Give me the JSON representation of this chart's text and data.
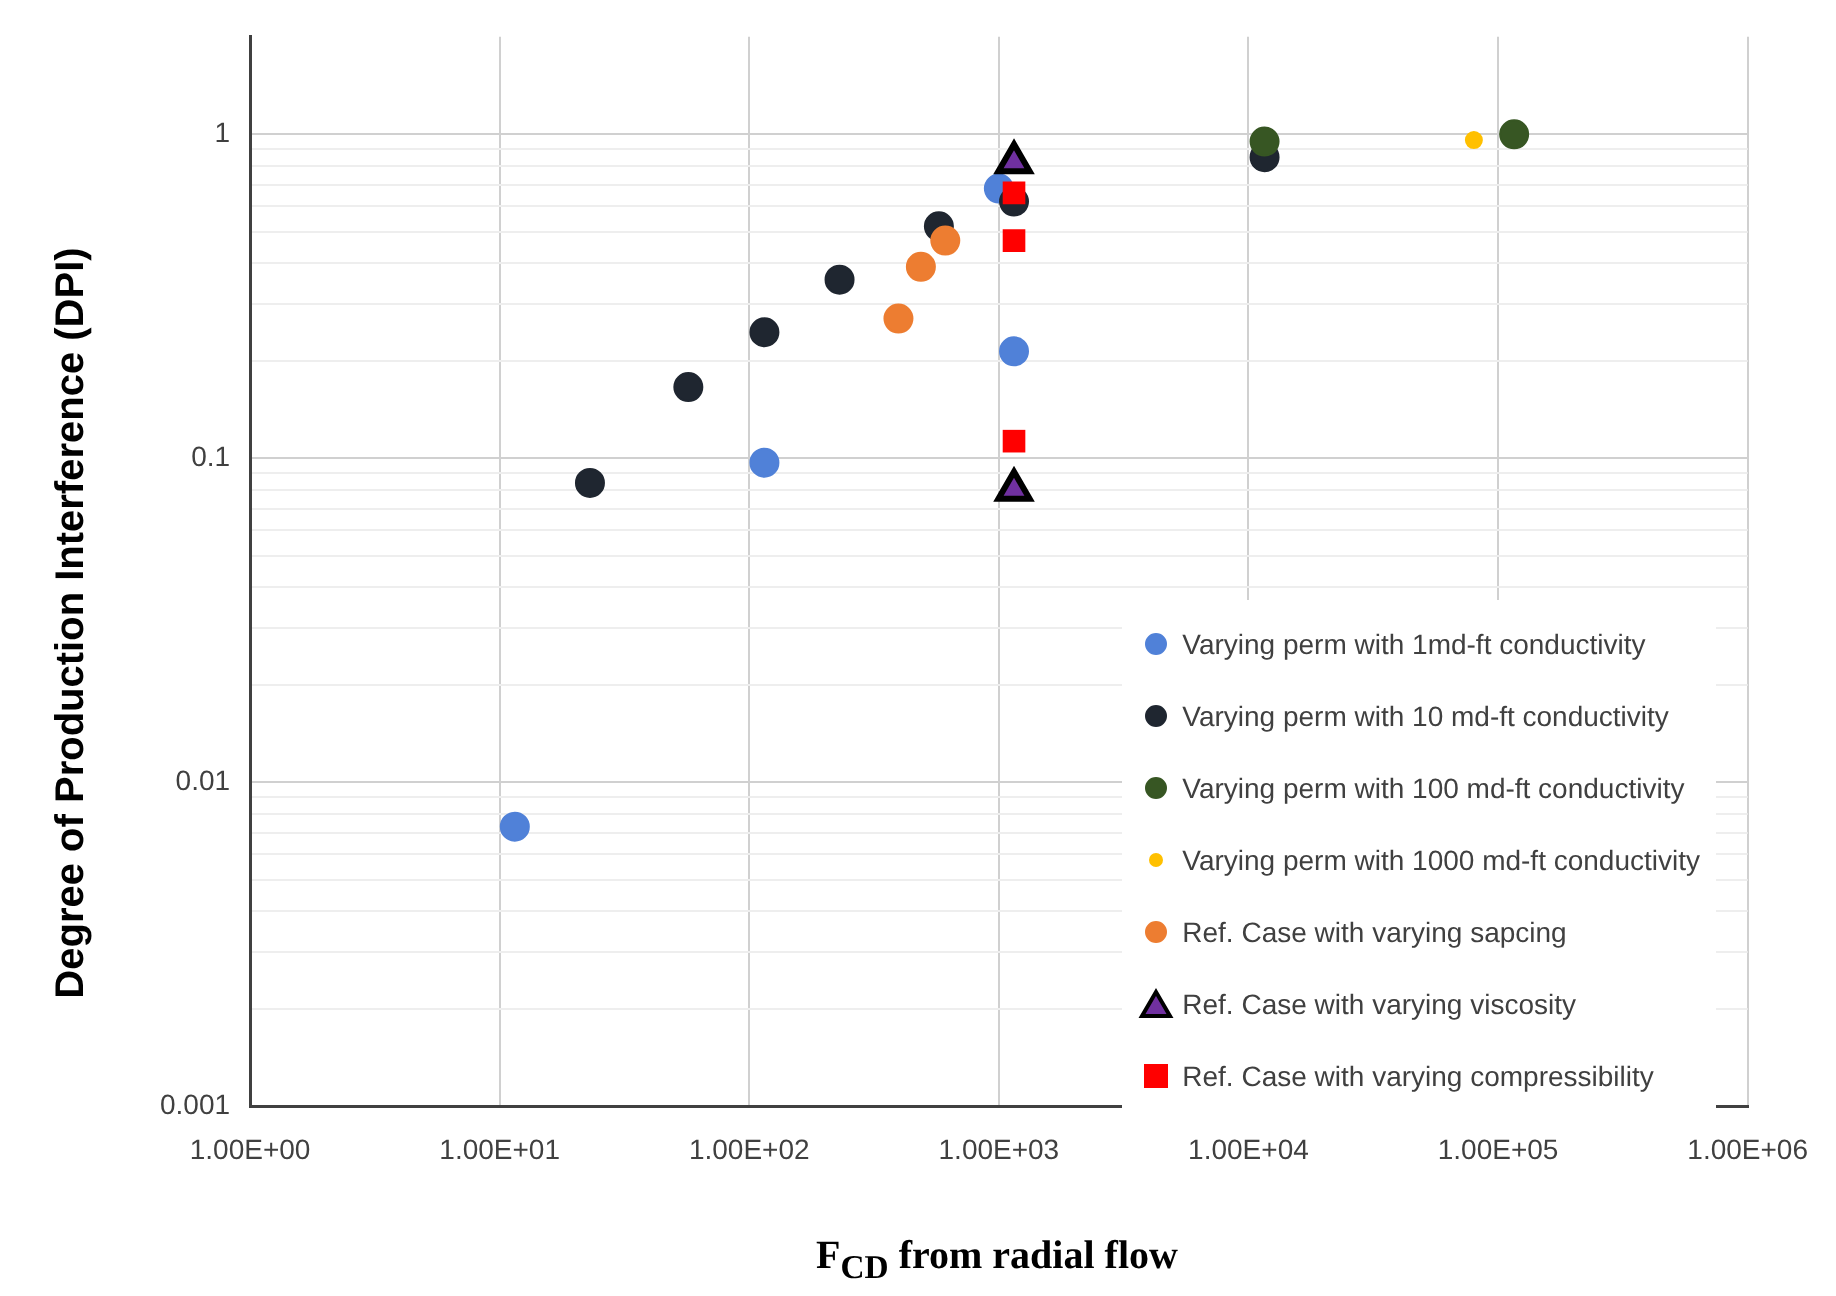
{
  "chart_data": {
    "type": "scatter",
    "xlabel": "F$_{CD}$ from radial flow",
    "ylabel": "Degree of Production Interference (DPI)",
    "log": "xy",
    "grid": true,
    "legend": "bottom right",
    "xlim": [
      1,
      1000000
    ],
    "xticks": [
      {
        "value": 1,
        "label": "1.00E+00"
      },
      {
        "value": 10,
        "label": "1.00E+01"
      },
      {
        "value": 100,
        "label": "1.00E+02"
      },
      {
        "value": 1000,
        "label": "1.00E+03"
      },
      {
        "value": 10000,
        "label": "1.00E+04"
      },
      {
        "value": 100000,
        "label": "1.00E+05"
      },
      {
        "value": 1000000,
        "label": "1.00E+06"
      }
    ],
    "ylim": [
      0.001,
      2
    ],
    "yticks": [
      0.001,
      {
        "value": 0.002,
        "label": null
      },
      {
        "value": 0.003,
        "label": null
      },
      {
        "value": 0.004,
        "label": null
      },
      {
        "value": 0.005,
        "label": null
      },
      {
        "value": 0.006,
        "label": null
      },
      {
        "value": 0.007,
        "label": null
      },
      {
        "value": 0.008,
        "label": null
      },
      {
        "value": 0.009,
        "label": null
      },
      0.01,
      {
        "value": 0.02,
        "label": null
      },
      {
        "value": 0.03,
        "label": null
      },
      {
        "value": 0.04,
        "label": null
      },
      {
        "value": 0.05,
        "label": null
      },
      {
        "value": 0.06,
        "label": null
      },
      {
        "value": 0.07,
        "label": null
      },
      {
        "value": 0.08,
        "label": null
      },
      {
        "value": 0.09,
        "label": null
      },
      0.1,
      {
        "value": 0.2,
        "label": null
      },
      {
        "value": 0.3,
        "label": null
      },
      {
        "value": 0.4,
        "label": null
      },
      {
        "value": 0.5,
        "label": null
      },
      {
        "value": 0.6,
        "label": null
      },
      {
        "value": 0.7,
        "label": null
      },
      {
        "value": 0.8,
        "label": null
      },
      {
        "value": 0.9,
        "label": null
      },
      1
    ],
    "series": [
      {
        "name": "Varying perm with 1md-ft conductivity",
        "color": "#5081d8",
        "marker": "circle",
        "x": [
          11.5,
          115,
          1150,
          1000
        ],
        "values": [
          0.0073,
          0.097,
          0.214,
          0.68
        ]
      },
      {
        "name": "Varying perm with 10 md-ft conductivity",
        "color": "#1f2630",
        "marker": "circle",
        "x": [
          23,
          57,
          115,
          230,
          575,
          1150,
          11600
        ],
        "values": [
          0.084,
          0.166,
          0.245,
          0.356,
          0.52,
          0.62,
          0.85
        ]
      },
      {
        "name": "Varying perm with 100 md-ft conductivity",
        "color": "#375623",
        "marker": "circle",
        "x": [
          11600,
          116000
        ],
        "values": [
          0.95,
          1.0
        ]
      },
      {
        "name": "Varying perm with 1000 md-ft conductivity",
        "color": "#ffc000",
        "marker": "circle",
        "x": [
          80000
        ],
        "values": [
          0.96
        ]
      },
      {
        "name": "Ref. Case with varying sapcing",
        "color": "#ed7d31",
        "marker": "circle",
        "x": [
          396,
          487,
          610
        ],
        "values": [
          0.27,
          0.39,
          0.47
        ]
      },
      {
        "name": "Ref. Case with varying viscosity",
        "color": "#7030a0",
        "marker": "triangle",
        "x": [
          1150,
          1150
        ],
        "values": [
          0.82,
          0.08
        ]
      },
      {
        "name": "Ref. Case with varying compressibility",
        "color": "#ff0000",
        "marker": "square",
        "x": [
          1150,
          1150,
          1150
        ],
        "values": [
          0.66,
          0.47,
          0.113
        ]
      }
    ]
  }
}
